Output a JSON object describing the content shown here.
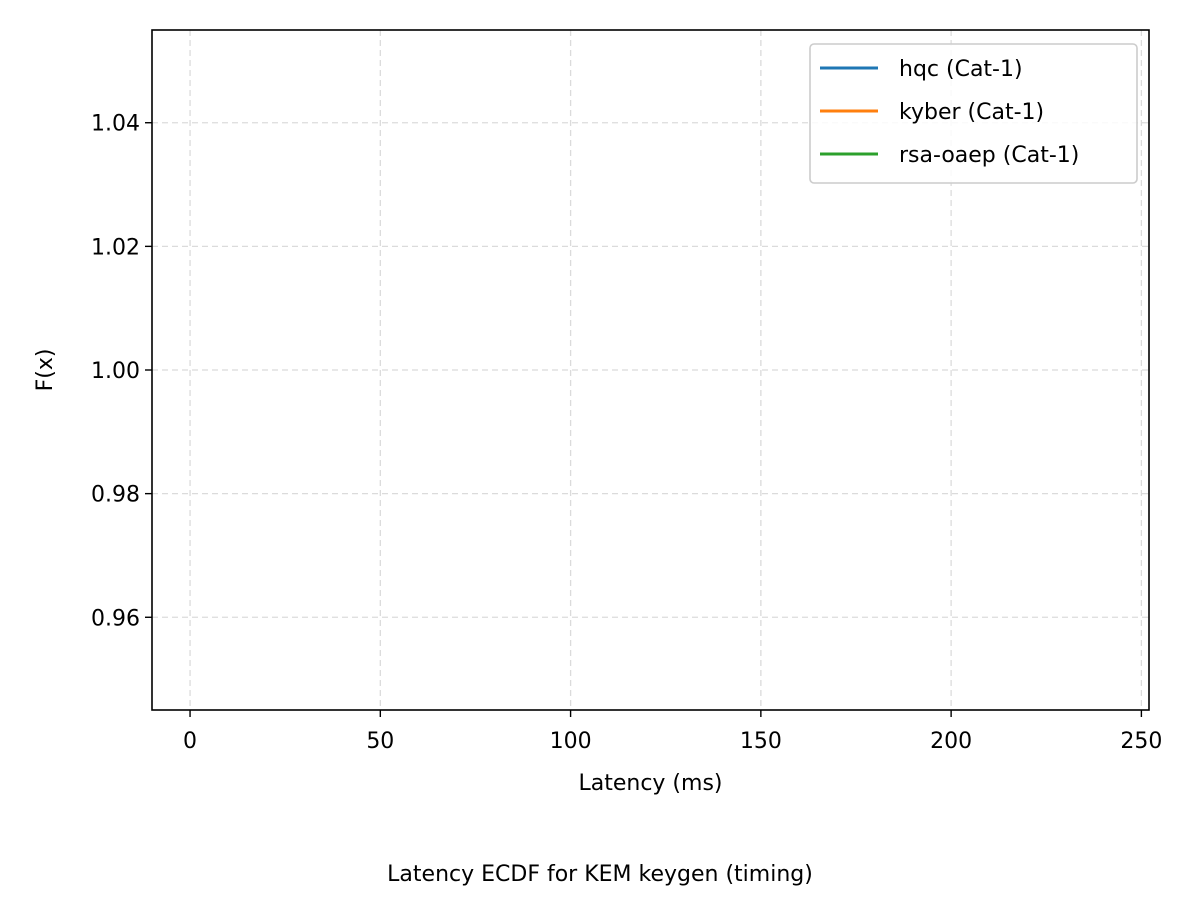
{
  "chart_data": {
    "type": "line",
    "title": "Latency ECDF for KEM keygen (timing)",
    "xlabel": "Latency (ms)",
    "ylabel": "F(x)",
    "xlim": [
      -10,
      252
    ],
    "ylim": [
      0.945,
      1.055
    ],
    "x_ticks": [
      0,
      50,
      100,
      150,
      200,
      250
    ],
    "y_ticks": [
      0.96,
      0.98,
      1.0,
      1.02,
      1.04
    ],
    "x_tick_labels": [
      "0",
      "50",
      "100",
      "150",
      "200",
      "250"
    ],
    "y_tick_labels": [
      "0.96",
      "0.98",
      "1.00",
      "1.02",
      "1.04"
    ],
    "grid": true,
    "legend_position": "upper-right",
    "series": [
      {
        "name": "hqc (Cat-1)",
        "color": "#1f77b4",
        "x": [],
        "y": []
      },
      {
        "name": "kyber (Cat-1)",
        "color": "#ff7f0e",
        "x": [],
        "y": []
      },
      {
        "name": "rsa-oaep (Cat-1)",
        "color": "#2ca02c",
        "x": [],
        "y": []
      }
    ]
  }
}
